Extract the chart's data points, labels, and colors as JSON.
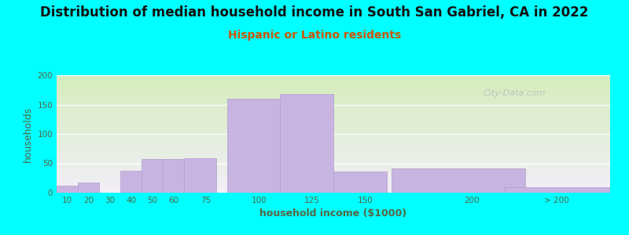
{
  "title": "Distribution of median household income in South San Gabriel, CA in 2022",
  "subtitle": "Hispanic or Latino residents",
  "xlabel": "household income ($1000)",
  "ylabel": "households",
  "background_color": "#00FFFF",
  "bar_color": "#c8b4e0",
  "bar_edge_color": "#b0a0cc",
  "title_fontsize": 12,
  "title_fontweight": "bold",
  "subtitle_fontsize": 10,
  "subtitle_color": "#cc5500",
  "tick_color": "#556644",
  "label_color": "#556644",
  "watermark": "City-Data.com",
  "bar_centers": [
    10,
    20,
    30,
    40,
    50,
    60,
    72.5,
    97.5,
    122.5,
    147.5,
    193.75,
    240
  ],
  "bar_widths": [
    10,
    10,
    10,
    10,
    10,
    10,
    15,
    25,
    25,
    25,
    62.5,
    50
  ],
  "values": [
    12,
    18,
    0,
    38,
    57,
    57,
    59,
    160,
    168,
    36,
    42,
    9
  ],
  "xlim": [
    5,
    265
  ],
  "ylim": [
    0,
    200
  ],
  "yticks": [
    0,
    50,
    100,
    150,
    200
  ],
  "xtick_positions": [
    10,
    20,
    30,
    40,
    50,
    60,
    75,
    100,
    125,
    150,
    200,
    240
  ],
  "xtick_labels": [
    "10",
    "20",
    "30",
    "40",
    "50",
    "60",
    "75",
    "100",
    "125",
    "150",
    "200",
    "> 200"
  ],
  "gradient_top": "#d4edbc",
  "gradient_bottom": "#f2eef8"
}
